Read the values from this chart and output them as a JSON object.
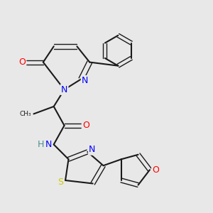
{
  "bg_color": "#e8e8e8",
  "bond_color": "#1a1a1a",
  "atom_colors": {
    "N": "#0000ff",
    "O": "#ff0000",
    "S": "#cccc00",
    "H": "#4a9090",
    "C": "#1a1a1a"
  },
  "font_size_atom": 9,
  "font_size_small": 7
}
